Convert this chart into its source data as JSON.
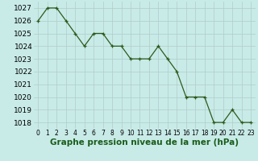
{
  "x": [
    0,
    1,
    2,
    3,
    4,
    5,
    6,
    7,
    8,
    9,
    10,
    11,
    12,
    13,
    14,
    15,
    16,
    17,
    18,
    19,
    20,
    21,
    22,
    23
  ],
  "y": [
    1026,
    1027,
    1027,
    1026,
    1025,
    1024,
    1025,
    1025,
    1024,
    1024,
    1023,
    1023,
    1023,
    1024,
    1023,
    1022,
    1020,
    1020,
    1020,
    1018,
    1018,
    1019,
    1018,
    1018
  ],
  "line_color": "#2d5a1b",
  "marker_color": "#2d5a1b",
  "bg_color": "#c8ebe8",
  "grid_color": "#b0ccc8",
  "xlabel": "Graphe pression niveau de la mer (hPa)",
  "xlabel_color": "#1a5c1a",
  "ylim_min": 1017.5,
  "ylim_max": 1027.5,
  "yticks": [
    1018,
    1019,
    1020,
    1021,
    1022,
    1023,
    1024,
    1025,
    1026,
    1027
  ],
  "xtick_labels": [
    "0",
    "1",
    "2",
    "3",
    "4",
    "5",
    "6",
    "7",
    "8",
    "9",
    "10",
    "11",
    "12",
    "13",
    "14",
    "15",
    "16",
    "17",
    "18",
    "19",
    "20",
    "21",
    "22",
    "23"
  ],
  "tick_label_fontsize": 5.5,
  "ytick_label_fontsize": 6.5,
  "xlabel_fontsize": 7.5
}
